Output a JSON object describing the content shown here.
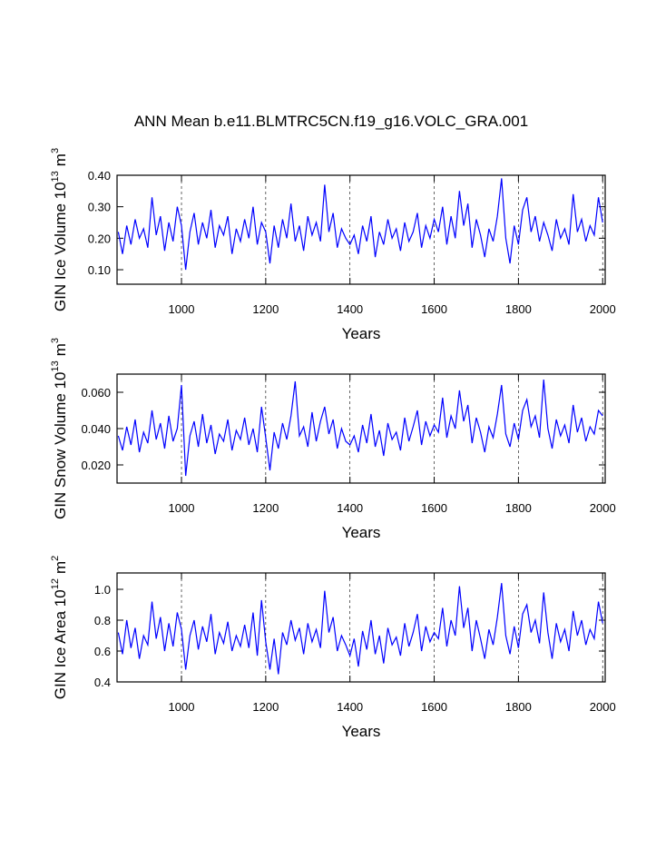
{
  "title": "ANN Mean b.e11.BLMTRC5CN.f19_g16.VOLC_GRA.001",
  "chart_data": [
    {
      "type": "line",
      "xlabel": "Years",
      "ylabel": {
        "text": "GIN Ice Volume 10",
        "exponent": "13",
        "unit": "m",
        "unit_exponent": "3"
      },
      "xlim": [
        847,
        2006
      ],
      "xticks": [
        1000,
        1200,
        1400,
        1600,
        1800,
        2000
      ],
      "ylim": [
        0.054,
        0.4
      ],
      "yticks": [
        {
          "value": 0.1,
          "label": "0.10"
        },
        {
          "value": 0.2,
          "label": "0.20"
        },
        {
          "value": 0.3,
          "label": "0.30"
        },
        {
          "value": 0.4,
          "label": "0.40"
        }
      ],
      "grid": "x",
      "color": "#0000ff",
      "x": [
        850,
        860,
        870,
        880,
        890,
        900,
        910,
        920,
        930,
        940,
        950,
        960,
        970,
        980,
        990,
        1000,
        1010,
        1020,
        1030,
        1040,
        1050,
        1060,
        1070,
        1080,
        1090,
        1100,
        1110,
        1120,
        1130,
        1140,
        1150,
        1160,
        1170,
        1180,
        1190,
        1200,
        1210,
        1220,
        1230,
        1240,
        1250,
        1260,
        1270,
        1280,
        1290,
        1300,
        1310,
        1320,
        1330,
        1340,
        1350,
        1360,
        1370,
        1380,
        1390,
        1400,
        1410,
        1420,
        1430,
        1440,
        1450,
        1460,
        1470,
        1480,
        1490,
        1500,
        1510,
        1520,
        1530,
        1540,
        1550,
        1560,
        1570,
        1580,
        1590,
        1600,
        1610,
        1620,
        1630,
        1640,
        1650,
        1660,
        1670,
        1680,
        1690,
        1700,
        1710,
        1720,
        1730,
        1740,
        1750,
        1760,
        1770,
        1780,
        1790,
        1800,
        1810,
        1820,
        1830,
        1840,
        1850,
        1860,
        1870,
        1880,
        1890,
        1900,
        1910,
        1920,
        1930,
        1940,
        1950,
        1960,
        1970,
        1980,
        1990,
        2000
      ],
      "values": [
        0.22,
        0.15,
        0.24,
        0.18,
        0.26,
        0.2,
        0.23,
        0.17,
        0.33,
        0.21,
        0.27,
        0.16,
        0.25,
        0.19,
        0.3,
        0.24,
        0.1,
        0.22,
        0.28,
        0.18,
        0.25,
        0.2,
        0.29,
        0.17,
        0.24,
        0.21,
        0.27,
        0.15,
        0.23,
        0.19,
        0.26,
        0.2,
        0.3,
        0.18,
        0.25,
        0.22,
        0.12,
        0.24,
        0.17,
        0.26,
        0.2,
        0.31,
        0.19,
        0.24,
        0.16,
        0.27,
        0.21,
        0.25,
        0.19,
        0.37,
        0.22,
        0.28,
        0.17,
        0.23,
        0.2,
        0.18,
        0.21,
        0.15,
        0.24,
        0.19,
        0.27,
        0.14,
        0.22,
        0.18,
        0.26,
        0.2,
        0.23,
        0.16,
        0.25,
        0.19,
        0.22,
        0.28,
        0.17,
        0.24,
        0.2,
        0.26,
        0.22,
        0.3,
        0.18,
        0.27,
        0.2,
        0.35,
        0.24,
        0.31,
        0.17,
        0.26,
        0.21,
        0.14,
        0.23,
        0.19,
        0.27,
        0.39,
        0.2,
        0.12,
        0.24,
        0.18,
        0.29,
        0.33,
        0.22,
        0.27,
        0.19,
        0.25,
        0.21,
        0.16,
        0.26,
        0.2,
        0.23,
        0.18,
        0.34,
        0.22,
        0.26,
        0.19,
        0.24,
        0.21,
        0.33,
        0.25
      ]
    },
    {
      "type": "line",
      "xlabel": "Years",
      "ylabel": {
        "text": "GIN Snow Volume 10",
        "exponent": "13",
        "unit": "m",
        "unit_exponent": "3"
      },
      "xlim": [
        847,
        2006
      ],
      "xticks": [
        1000,
        1200,
        1400,
        1600,
        1800,
        2000
      ],
      "ylim": [
        0.01,
        0.07
      ],
      "yticks": [
        {
          "value": 0.02,
          "label": "0.020"
        },
        {
          "value": 0.04,
          "label": "0.040"
        },
        {
          "value": 0.06,
          "label": "0.060"
        }
      ],
      "grid": "x",
      "color": "#0000ff",
      "x": [
        850,
        860,
        870,
        880,
        890,
        900,
        910,
        920,
        930,
        940,
        950,
        960,
        970,
        980,
        990,
        1000,
        1010,
        1020,
        1030,
        1040,
        1050,
        1060,
        1070,
        1080,
        1090,
        1100,
        1110,
        1120,
        1130,
        1140,
        1150,
        1160,
        1170,
        1180,
        1190,
        1200,
        1210,
        1220,
        1230,
        1240,
        1250,
        1260,
        1270,
        1280,
        1290,
        1300,
        1310,
        1320,
        1330,
        1340,
        1350,
        1360,
        1370,
        1380,
        1390,
        1400,
        1410,
        1420,
        1430,
        1440,
        1450,
        1460,
        1470,
        1480,
        1490,
        1500,
        1510,
        1520,
        1530,
        1540,
        1550,
        1560,
        1570,
        1580,
        1590,
        1600,
        1610,
        1620,
        1630,
        1640,
        1650,
        1660,
        1670,
        1680,
        1690,
        1700,
        1710,
        1720,
        1730,
        1740,
        1750,
        1760,
        1770,
        1780,
        1790,
        1800,
        1810,
        1820,
        1830,
        1840,
        1850,
        1860,
        1870,
        1880,
        1890,
        1900,
        1910,
        1920,
        1930,
        1940,
        1950,
        1960,
        1970,
        1980,
        1990,
        2000
      ],
      "values": [
        0.036,
        0.028,
        0.041,
        0.031,
        0.045,
        0.027,
        0.038,
        0.032,
        0.05,
        0.034,
        0.043,
        0.029,
        0.047,
        0.033,
        0.04,
        0.064,
        0.014,
        0.036,
        0.044,
        0.03,
        0.048,
        0.032,
        0.042,
        0.026,
        0.037,
        0.033,
        0.045,
        0.028,
        0.039,
        0.034,
        0.046,
        0.031,
        0.04,
        0.027,
        0.052,
        0.035,
        0.017,
        0.038,
        0.029,
        0.043,
        0.034,
        0.047,
        0.066,
        0.036,
        0.041,
        0.03,
        0.049,
        0.033,
        0.044,
        0.052,
        0.037,
        0.045,
        0.029,
        0.04,
        0.033,
        0.031,
        0.036,
        0.027,
        0.042,
        0.032,
        0.048,
        0.03,
        0.039,
        0.025,
        0.043,
        0.034,
        0.038,
        0.028,
        0.046,
        0.033,
        0.041,
        0.05,
        0.031,
        0.044,
        0.036,
        0.042,
        0.038,
        0.057,
        0.035,
        0.047,
        0.04,
        0.061,
        0.044,
        0.053,
        0.032,
        0.046,
        0.038,
        0.027,
        0.041,
        0.035,
        0.048,
        0.064,
        0.037,
        0.03,
        0.043,
        0.034,
        0.05,
        0.056,
        0.041,
        0.047,
        0.035,
        0.067,
        0.04,
        0.029,
        0.045,
        0.036,
        0.042,
        0.032,
        0.053,
        0.038,
        0.046,
        0.033,
        0.041,
        0.037,
        0.05,
        0.047
      ]
    },
    {
      "type": "line",
      "xlabel": "Years",
      "ylabel": {
        "text": "GIN Ice Area 10",
        "exponent": "12",
        "unit": "m",
        "unit_exponent": "2"
      },
      "xlim": [
        847,
        2006
      ],
      "xticks": [
        1000,
        1200,
        1400,
        1600,
        1800,
        2000
      ],
      "ylim": [
        0.4,
        1.106
      ],
      "yticks": [
        0.4,
        0.6,
        0.8,
        {
          "value": 1,
          "label": "1.0"
        }
      ],
      "grid": "x",
      "color": "#0000ff",
      "x": [
        850,
        860,
        870,
        880,
        890,
        900,
        910,
        920,
        930,
        940,
        950,
        960,
        970,
        980,
        990,
        1000,
        1010,
        1020,
        1030,
        1040,
        1050,
        1060,
        1070,
        1080,
        1090,
        1100,
        1110,
        1120,
        1130,
        1140,
        1150,
        1160,
        1170,
        1180,
        1190,
        1200,
        1210,
        1220,
        1230,
        1240,
        1250,
        1260,
        1270,
        1280,
        1290,
        1300,
        1310,
        1320,
        1330,
        1340,
        1350,
        1360,
        1370,
        1380,
        1390,
        1400,
        1410,
        1420,
        1430,
        1440,
        1450,
        1460,
        1470,
        1480,
        1490,
        1500,
        1510,
        1520,
        1530,
        1540,
        1550,
        1560,
        1570,
        1580,
        1590,
        1600,
        1610,
        1620,
        1630,
        1640,
        1650,
        1660,
        1670,
        1680,
        1690,
        1700,
        1710,
        1720,
        1730,
        1740,
        1750,
        1760,
        1770,
        1780,
        1790,
        1800,
        1810,
        1820,
        1830,
        1840,
        1850,
        1860,
        1870,
        1880,
        1890,
        1900,
        1910,
        1920,
        1930,
        1940,
        1950,
        1960,
        1970,
        1980,
        1990,
        2000
      ],
      "values": [
        0.72,
        0.58,
        0.8,
        0.62,
        0.75,
        0.55,
        0.7,
        0.64,
        0.92,
        0.68,
        0.82,
        0.6,
        0.78,
        0.63,
        0.85,
        0.74,
        0.48,
        0.7,
        0.8,
        0.61,
        0.76,
        0.66,
        0.84,
        0.58,
        0.72,
        0.65,
        0.79,
        0.6,
        0.7,
        0.63,
        0.77,
        0.62,
        0.85,
        0.57,
        0.93,
        0.66,
        0.48,
        0.68,
        0.45,
        0.72,
        0.64,
        0.8,
        0.67,
        0.75,
        0.58,
        0.78,
        0.66,
        0.74,
        0.62,
        0.99,
        0.72,
        0.82,
        0.6,
        0.7,
        0.64,
        0.57,
        0.68,
        0.5,
        0.73,
        0.61,
        0.8,
        0.58,
        0.7,
        0.52,
        0.75,
        0.64,
        0.69,
        0.57,
        0.78,
        0.63,
        0.72,
        0.84,
        0.6,
        0.76,
        0.66,
        0.72,
        0.68,
        0.88,
        0.63,
        0.8,
        0.7,
        1.02,
        0.75,
        0.88,
        0.6,
        0.8,
        0.68,
        0.55,
        0.74,
        0.64,
        0.82,
        1.04,
        0.7,
        0.58,
        0.76,
        0.62,
        0.84,
        0.9,
        0.72,
        0.8,
        0.65,
        0.98,
        0.72,
        0.55,
        0.78,
        0.66,
        0.74,
        0.6,
        0.86,
        0.7,
        0.8,
        0.64,
        0.74,
        0.68,
        0.92,
        0.78
      ]
    }
  ]
}
